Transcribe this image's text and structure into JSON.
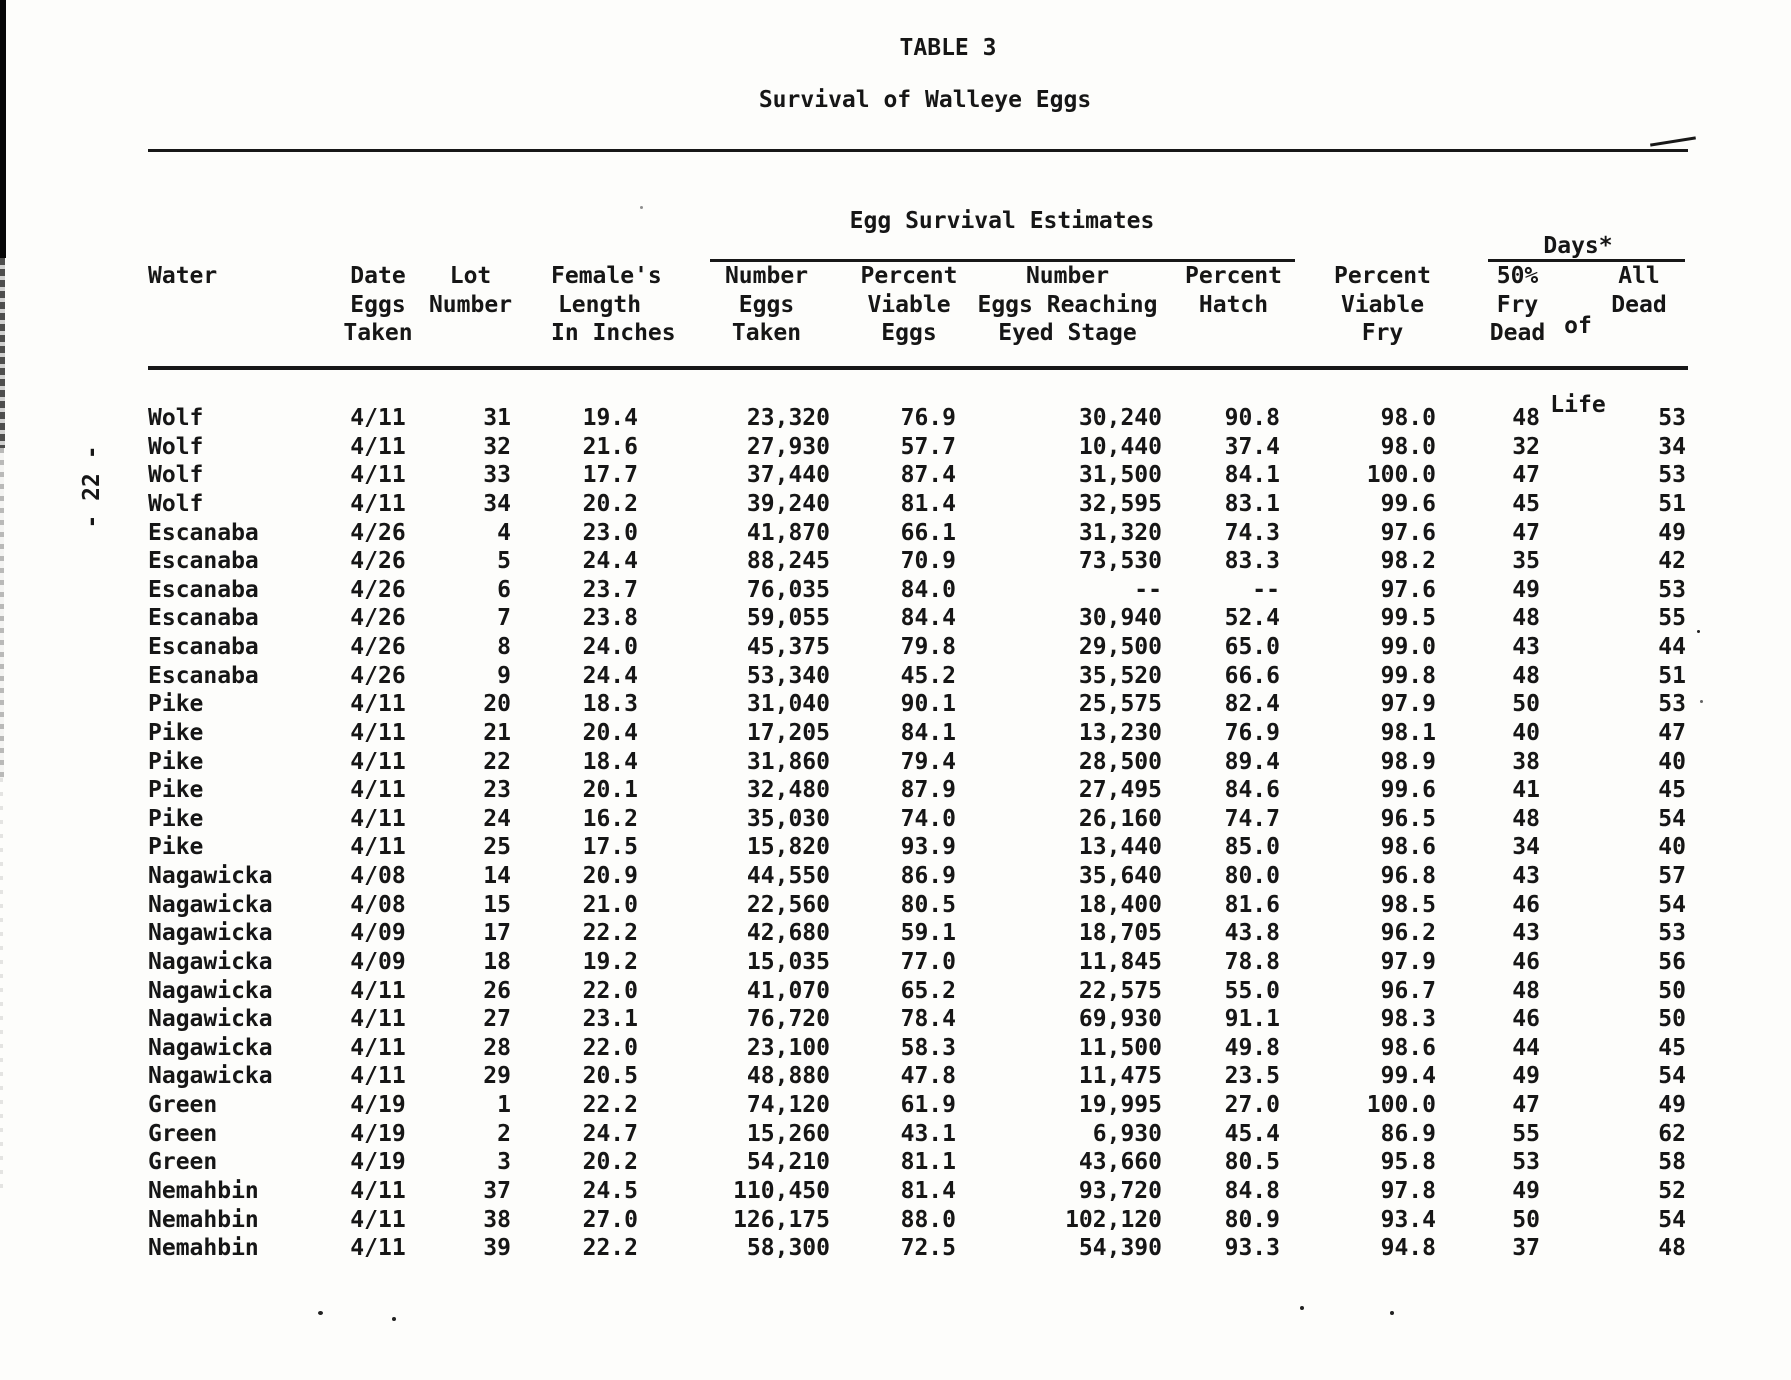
{
  "page_number_rotated": "- 22 -",
  "title": "TABLE 3",
  "subtitle": "Survival of Walleye Eggs",
  "table": {
    "group_headers": {
      "egg_survival": "Egg Survival Estimates",
      "days_of_life_lines": [
        "Days*",
        "of",
        "Life"
      ]
    },
    "columns": [
      {
        "key": "water",
        "header_lines": [
          "",
          "",
          "Water"
        ]
      },
      {
        "key": "date_eggs_taken",
        "header_lines": [
          "Date",
          "Eggs",
          "Taken"
        ]
      },
      {
        "key": "lot_number",
        "header_lines": [
          "",
          "Lot",
          "Number"
        ]
      },
      {
        "key": "female_length_in",
        "header_lines": [
          "Female's",
          "Length",
          "In Inches"
        ]
      },
      {
        "key": "number_eggs_taken",
        "header_lines": [
          "Number",
          "Eggs",
          "Taken"
        ]
      },
      {
        "key": "pct_viable_eggs",
        "header_lines": [
          "Percent",
          "Viable",
          "Eggs"
        ]
      },
      {
        "key": "number_eyed_stage",
        "header_lines": [
          "Number",
          "Eggs Reaching",
          "Eyed Stage"
        ]
      },
      {
        "key": "pct_hatch",
        "header_lines": [
          "",
          "Percent",
          "Hatch"
        ]
      },
      {
        "key": "pct_viable_fry",
        "header_lines": [
          "Percent",
          "Viable",
          "Fry"
        ]
      },
      {
        "key": "fifty_pct_fry_dead",
        "header_lines": [
          "50%",
          "Fry",
          "Dead"
        ]
      },
      {
        "key": "all_dead",
        "header_lines": [
          "All",
          "Dead",
          ""
        ]
      }
    ],
    "rows": [
      [
        "Wolf",
        "4/11",
        "31",
        "19.4",
        "23,320",
        "76.9",
        "30,240",
        "90.8",
        "98.0",
        "48",
        "53"
      ],
      [
        "Wolf",
        "4/11",
        "32",
        "21.6",
        "27,930",
        "57.7",
        "10,440",
        "37.4",
        "98.0",
        "32",
        "34"
      ],
      [
        "Wolf",
        "4/11",
        "33",
        "17.7",
        "37,440",
        "87.4",
        "31,500",
        "84.1",
        "100.0",
        "47",
        "53"
      ],
      [
        "Wolf",
        "4/11",
        "34",
        "20.2",
        "39,240",
        "81.4",
        "32,595",
        "83.1",
        "99.6",
        "45",
        "51"
      ],
      [
        "Escanaba",
        "4/26",
        "4",
        "23.0",
        "41,870",
        "66.1",
        "31,320",
        "74.3",
        "97.6",
        "47",
        "49"
      ],
      [
        "Escanaba",
        "4/26",
        "5",
        "24.4",
        "88,245",
        "70.9",
        "73,530",
        "83.3",
        "98.2",
        "35",
        "42"
      ],
      [
        "Escanaba",
        "4/26",
        "6",
        "23.7",
        "76,035",
        "84.0",
        "--",
        "--",
        "97.6",
        "49",
        "53"
      ],
      [
        "Escanaba",
        "4/26",
        "7",
        "23.8",
        "59,055",
        "84.4",
        "30,940",
        "52.4",
        "99.5",
        "48",
        "55"
      ],
      [
        "Escanaba",
        "4/26",
        "8",
        "24.0",
        "45,375",
        "79.8",
        "29,500",
        "65.0",
        "99.0",
        "43",
        "44"
      ],
      [
        "Escanaba",
        "4/26",
        "9",
        "24.4",
        "53,340",
        "45.2",
        "35,520",
        "66.6",
        "99.8",
        "48",
        "51"
      ],
      [
        "Pike",
        "4/11",
        "20",
        "18.3",
        "31,040",
        "90.1",
        "25,575",
        "82.4",
        "97.9",
        "50",
        "53"
      ],
      [
        "Pike",
        "4/11",
        "21",
        "20.4",
        "17,205",
        "84.1",
        "13,230",
        "76.9",
        "98.1",
        "40",
        "47"
      ],
      [
        "Pike",
        "4/11",
        "22",
        "18.4",
        "31,860",
        "79.4",
        "28,500",
        "89.4",
        "98.9",
        "38",
        "40"
      ],
      [
        "Pike",
        "4/11",
        "23",
        "20.1",
        "32,480",
        "87.9",
        "27,495",
        "84.6",
        "99.6",
        "41",
        "45"
      ],
      [
        "Pike",
        "4/11",
        "24",
        "16.2",
        "35,030",
        "74.0",
        "26,160",
        "74.7",
        "96.5",
        "48",
        "54"
      ],
      [
        "Pike",
        "4/11",
        "25",
        "17.5",
        "15,820",
        "93.9",
        "13,440",
        "85.0",
        "98.6",
        "34",
        "40"
      ],
      [
        "Nagawicka",
        "4/08",
        "14",
        "20.9",
        "44,550",
        "86.9",
        "35,640",
        "80.0",
        "96.8",
        "43",
        "57"
      ],
      [
        "Nagawicka",
        "4/08",
        "15",
        "21.0",
        "22,560",
        "80.5",
        "18,400",
        "81.6",
        "98.5",
        "46",
        "54"
      ],
      [
        "Nagawicka",
        "4/09",
        "17",
        "22.2",
        "42,680",
        "59.1",
        "18,705",
        "43.8",
        "96.2",
        "43",
        "53"
      ],
      [
        "Nagawicka",
        "4/09",
        "18",
        "19.2",
        "15,035",
        "77.0",
        "11,845",
        "78.8",
        "97.9",
        "46",
        "56"
      ],
      [
        "Nagawicka",
        "4/11",
        "26",
        "22.0",
        "41,070",
        "65.2",
        "22,575",
        "55.0",
        "96.7",
        "48",
        "50"
      ],
      [
        "Nagawicka",
        "4/11",
        "27",
        "23.1",
        "76,720",
        "78.4",
        "69,930",
        "91.1",
        "98.3",
        "46",
        "50"
      ],
      [
        "Nagawicka",
        "4/11",
        "28",
        "22.0",
        "23,100",
        "58.3",
        "11,500",
        "49.8",
        "98.6",
        "44",
        "45"
      ],
      [
        "Nagawicka",
        "4/11",
        "29",
        "20.5",
        "48,880",
        "47.8",
        "11,475",
        "23.5",
        "99.4",
        "49",
        "54"
      ],
      [
        "Green",
        "4/19",
        "1",
        "22.2",
        "74,120",
        "61.9",
        "19,995",
        "27.0",
        "100.0",
        "47",
        "49"
      ],
      [
        "Green",
        "4/19",
        "2",
        "24.7",
        "15,260",
        "43.1",
        "6,930",
        "45.4",
        "86.9",
        "55",
        "62"
      ],
      [
        "Green",
        "4/19",
        "3",
        "20.2",
        "54,210",
        "81.1",
        "43,660",
        "80.5",
        "95.8",
        "53",
        "58"
      ],
      [
        "Nemahbin",
        "4/11",
        "37",
        "24.5",
        "110,450",
        "81.4",
        "93,720",
        "84.8",
        "97.8",
        "49",
        "52"
      ],
      [
        "Nemahbin",
        "4/11",
        "38",
        "27.0",
        "126,175",
        "88.0",
        "102,120",
        "80.9",
        "93.4",
        "50",
        "54"
      ],
      [
        "Nemahbin",
        "4/11",
        "39",
        "22.2",
        "58,300",
        "72.5",
        "54,390",
        "93.3",
        "94.8",
        "37",
        "48"
      ]
    ]
  }
}
